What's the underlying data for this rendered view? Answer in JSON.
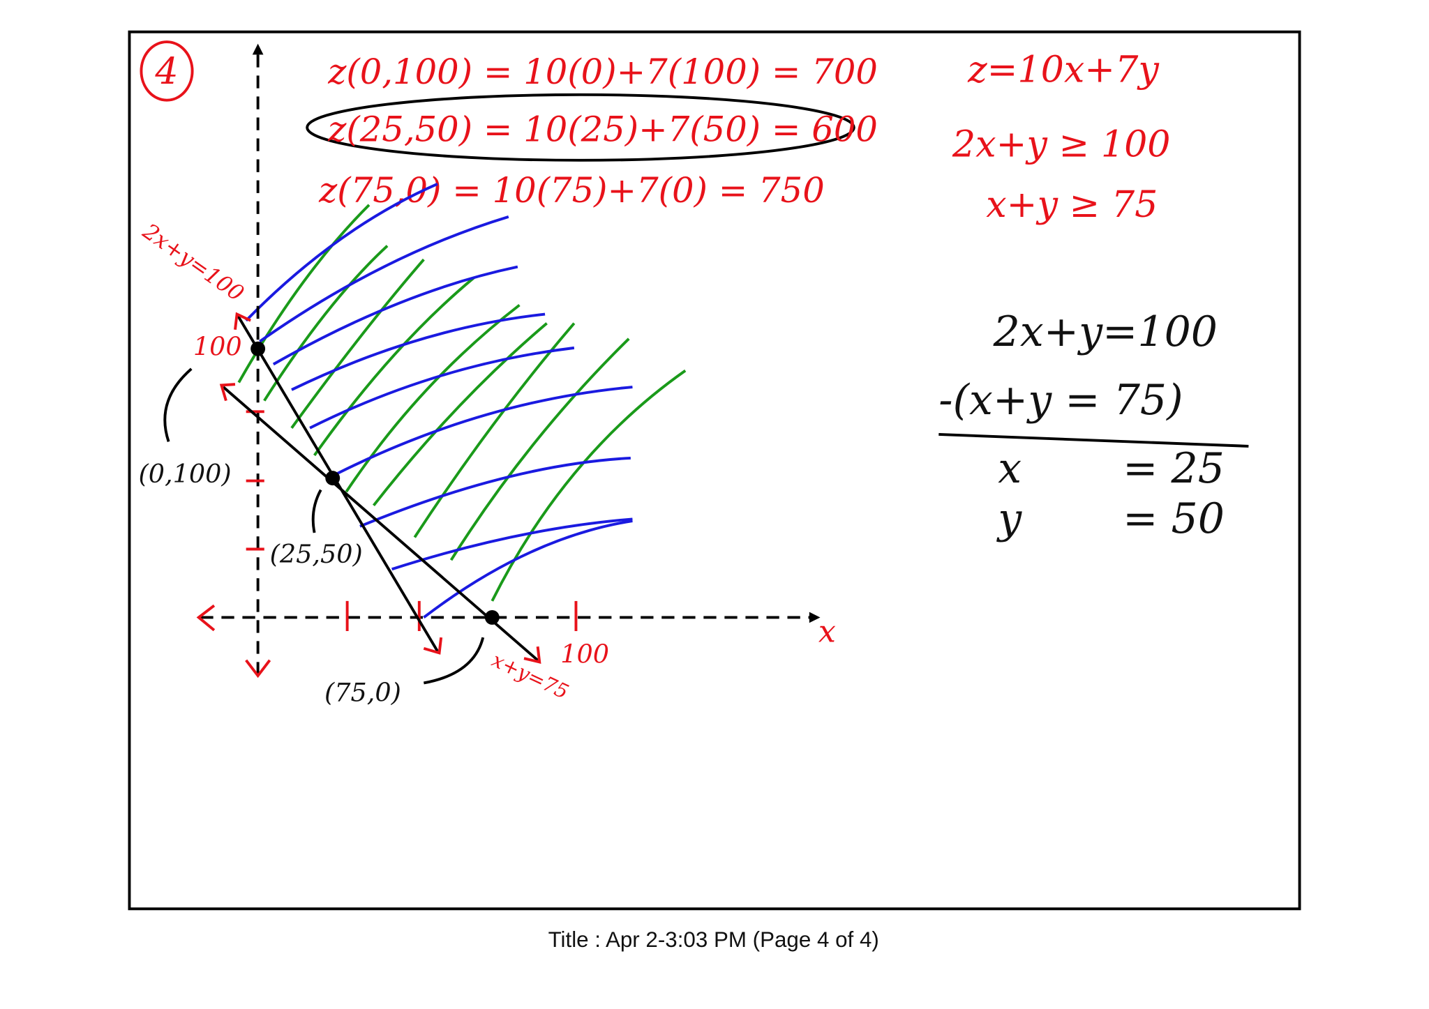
{
  "problem_number": "4",
  "evaluations": [
    "z(0,100) = 10(0)+7(100) = 700",
    "z(25,50) = 10(25)+7(50) = 600",
    "z(75,0) = 10(75)+7(0) = 750"
  ],
  "objective": "z=10x+7y",
  "constraints": [
    "2x+y ≥ 100",
    "x+y ≥ 75"
  ],
  "elimination": {
    "lines": [
      "2x+y=100",
      "-(x+y = 75)"
    ],
    "results": [
      {
        "var": "x",
        "value": "= 25"
      },
      {
        "var": "y",
        "value": "= 50"
      }
    ]
  },
  "graph": {
    "axis_label": "x",
    "x_tick_label": "100",
    "y_tick_label": "100",
    "line_labels": [
      "2x+y=100",
      "x+y=75"
    ],
    "points": [
      "(0,100)",
      "(25,50)",
      "(75,0)"
    ]
  },
  "footer": "Title : Apr 2-3:03 PM (Page 4 of 4)"
}
